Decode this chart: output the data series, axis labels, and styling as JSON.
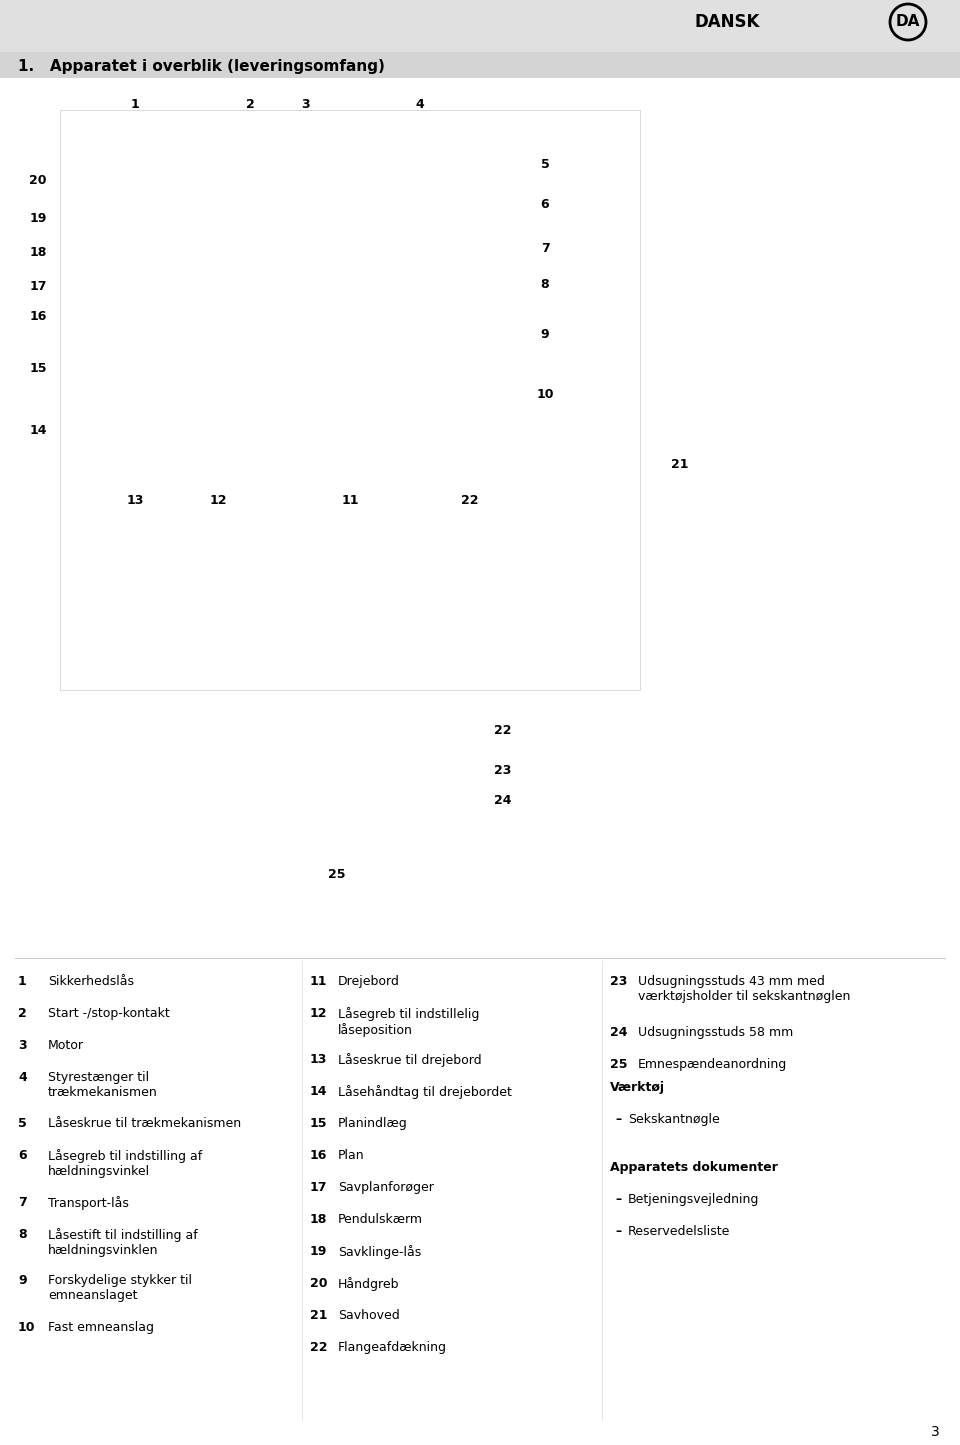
{
  "page_num": "3",
  "lang_label": "DANSK",
  "lang_code": "DA",
  "section_title": "1.   Apparatet i overblik (leveringsomfang)",
  "bg_color": "#ffffff",
  "header_bg": "#e0e0e0",
  "header_text_color": "#000000",
  "title_fontsize": 11,
  "body_fontsize": 9,
  "col1_items": [
    {
      "num": "1",
      "text": "Sikkerhedslås"
    },
    {
      "num": "2",
      "text": "Start -/stop-kontakt"
    },
    {
      "num": "3",
      "text": "Motor"
    },
    {
      "num": "4",
      "text": "Styrestænger til\ntrækmekanismen"
    },
    {
      "num": "5",
      "text": "Låseskrue til trækmekanismen"
    },
    {
      "num": "6",
      "text": "Låsegreb til indstilling af\nhældningsvinkel"
    },
    {
      "num": "7",
      "text": "Transport-lås"
    },
    {
      "num": "8",
      "text": "Låsestift til indstilling af\nhældningsvinklen"
    },
    {
      "num": "9",
      "text": "Forskydelige stykker til\nemneanslaget"
    },
    {
      "num": "10",
      "text": "Fast emneanslag"
    }
  ],
  "col2_items": [
    {
      "num": "11",
      "text": "Drejebord"
    },
    {
      "num": "12",
      "text": "Låsegreb til indstillelig\nlåseposition"
    },
    {
      "num": "13",
      "text": "Låseskrue til drejebord"
    },
    {
      "num": "14",
      "text": "Låsehåndtag til drejebordet"
    },
    {
      "num": "15",
      "text": "Planindlæg"
    },
    {
      "num": "16",
      "text": "Plan"
    },
    {
      "num": "17",
      "text": "Savplanforøger"
    },
    {
      "num": "18",
      "text": "Pendulskærm"
    },
    {
      "num": "19",
      "text": "Savklinge-lås"
    },
    {
      "num": "20",
      "text": "Håndgreb"
    },
    {
      "num": "21",
      "text": "Savhoved"
    },
    {
      "num": "22",
      "text": "Flangeafdækning"
    }
  ],
  "col3_items": [
    {
      "num": "23",
      "text": "Udsugningsstuds 43 mm med\nværktøjsholder til sekskantnøglen"
    },
    {
      "num": "24",
      "text": "Udsugningsstuds 58 mm"
    },
    {
      "num": "25",
      "text": "Emnespændeanordning"
    }
  ],
  "tools_header": "Værktøj",
  "tools_items": [
    {
      "bullet": "–",
      "text": "Sekskantnøgle"
    }
  ],
  "docs_header": "Apparatets dokumenter",
  "docs_items": [
    {
      "bullet": "–",
      "text": "Betjeningsvejledning"
    },
    {
      "bullet": "–",
      "text": "Reservedelsliste"
    }
  ]
}
